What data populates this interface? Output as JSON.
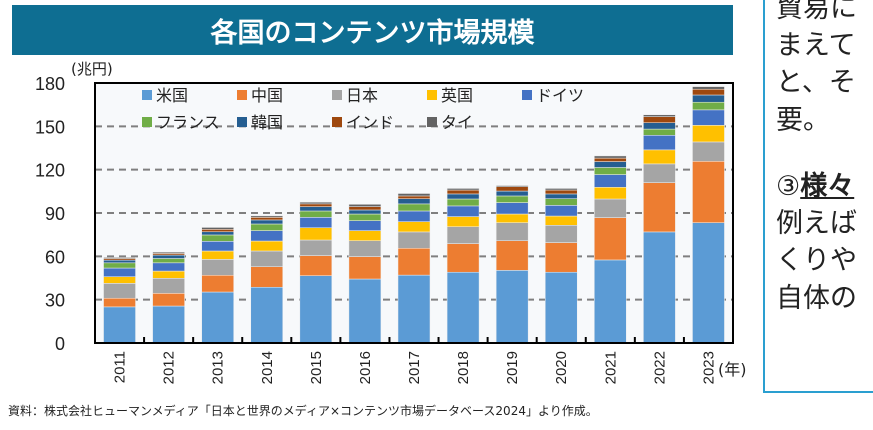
{
  "title": "各国のコンテンツ市場規模",
  "side_text": {
    "lines": [
      "貿易に",
      "まえて",
      "と、そ",
      "要。"
    ],
    "heading_num": "③",
    "heading_bold": "様々",
    "lines2": [
      "例えば",
      "くりや",
      "自体の"
    ]
  },
  "source": "資料：株式会社ヒューマンメディア「日本と世界のメディア×コンテンツ市場データベース2024」より作成。",
  "chart_data": {
    "type": "bar",
    "stacked": true,
    "title": "各国のコンテンツ市場規模",
    "ylabel": "(兆円)",
    "xlabel": "(年)",
    "ylim": [
      0,
      180
    ],
    "yticks": [
      0,
      30,
      60,
      90,
      120,
      150,
      180
    ],
    "grid": "horizontal dashed",
    "legend": "top-left inside",
    "categories": [
      "2011",
      "2012",
      "2013",
      "2014",
      "2015",
      "2016",
      "2017",
      "2018",
      "2019",
      "2020",
      "2021",
      "2022",
      "2023"
    ],
    "series": [
      {
        "name": "米国",
        "color": "#5b9bd5",
        "values": [
          25.0,
          25.6,
          35.3,
          38.6,
          46.6,
          44.3,
          47.0,
          49.0,
          50.3,
          49.0,
          57.5,
          76.9,
          83.3
        ]
      },
      {
        "name": "中国",
        "color": "#ed7d31",
        "values": [
          6.0,
          8.8,
          11.6,
          14.2,
          13.9,
          15.5,
          18.6,
          19.8,
          20.5,
          20.5,
          29.3,
          34.1,
          42.5
        ]
      },
      {
        "name": "日本",
        "color": "#a5a5a5",
        "values": [
          10.3,
          10.4,
          11.0,
          10.9,
          10.8,
          11.0,
          11.3,
          11.7,
          12.5,
          12.0,
          12.9,
          13.0,
          13.4
        ]
      },
      {
        "name": "英国",
        "color": "#ffc000",
        "values": [
          4.6,
          5.0,
          5.8,
          6.9,
          8.5,
          7.0,
          7.1,
          7.0,
          6.0,
          6.4,
          8.1,
          9.7,
          11.5
        ]
      },
      {
        "name": "ドイツ",
        "color": "#4472c4",
        "values": [
          6.0,
          5.7,
          6.7,
          7.2,
          7.2,
          6.9,
          7.4,
          7.4,
          7.9,
          7.4,
          8.8,
          10.1,
          10.7
        ]
      },
      {
        "name": "フランス",
        "color": "#70ad47",
        "values": [
          3.6,
          3.0,
          4.4,
          4.6,
          4.4,
          4.6,
          4.9,
          4.8,
          4.6,
          4.6,
          4.9,
          4.3,
          5.3
        ]
      },
      {
        "name": "韓国",
        "color": "#255e91",
        "values": [
          1.9,
          2.4,
          2.2,
          2.8,
          3.0,
          2.8,
          3.6,
          3.5,
          3.4,
          3.3,
          4.1,
          4.4,
          5.0
        ]
      },
      {
        "name": "インド",
        "color": "#9e480e",
        "values": [
          1.1,
          1.1,
          1.7,
          1.8,
          1.9,
          2.3,
          1.9,
          2.7,
          3.0,
          2.7,
          2.4,
          4.2,
          4.0
        ]
      },
      {
        "name": "タイ",
        "color": "#636363",
        "values": [
          0.7,
          0.9,
          1.3,
          1.0,
          1.2,
          1.6,
          1.7,
          1.1,
          0.8,
          1.1,
          1.5,
          1.3,
          1.8
        ]
      }
    ]
  }
}
